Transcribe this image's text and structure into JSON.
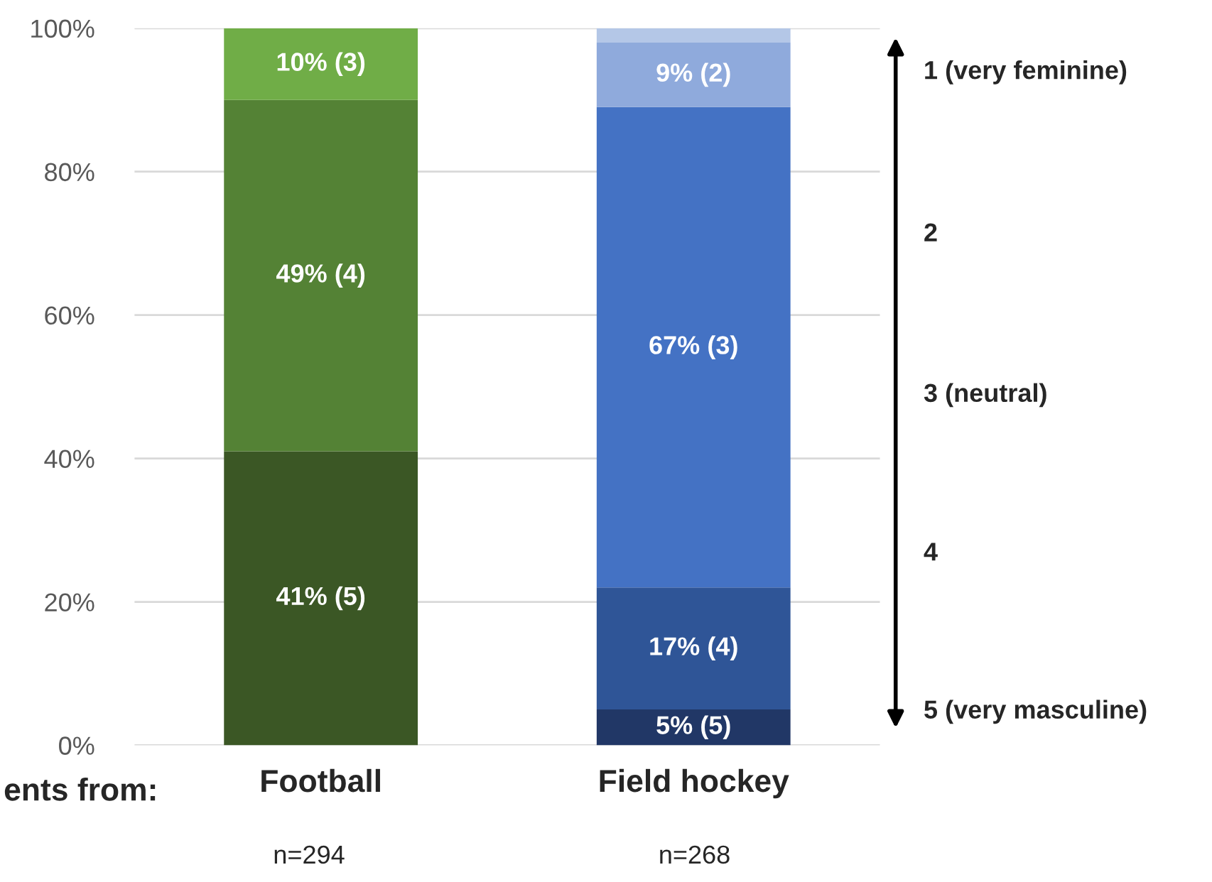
{
  "chart_data": {
    "type": "bar",
    "stacked": true,
    "categories": [
      "Football",
      "Field hockey"
    ],
    "series": [
      {
        "colors": [
          "#3b5725",
          "#213766"
        ],
        "values": [
          41,
          5
        ],
        "value_labels": [
          "41% (5)",
          "5% (5)"
        ]
      },
      {
        "colors": [
          "#548235",
          "#2f5597"
        ],
        "values": [
          49,
          17
        ],
        "value_labels": [
          "49% (4)",
          "17% (4)"
        ]
      },
      {
        "colors": [
          "#70ad47",
          "#4472c4"
        ],
        "values": [
          10,
          67
        ],
        "value_labels": [
          "10% (3)",
          "67% (3)"
        ]
      },
      {
        "colors": [
          "#a9d18e",
          "#8faadc"
        ],
        "values": [
          null,
          9
        ],
        "value_labels": [
          null,
          "9% (2)"
        ]
      },
      {
        "colors": [
          "#c5e0b4",
          "#b4c7e7"
        ],
        "values": [
          null,
          2
        ],
        "value_labels": [
          null,
          null
        ]
      }
    ],
    "ylim": [
      0,
      100
    ],
    "yticks": [
      {
        "value": 0,
        "label": "0%"
      },
      {
        "value": 20,
        "label": "20%"
      },
      {
        "value": 40,
        "label": "40%"
      },
      {
        "value": 60,
        "label": "60%"
      },
      {
        "value": 80,
        "label": "80%"
      },
      {
        "value": 100,
        "label": "100%"
      }
    ],
    "grid": "y",
    "annotations": [
      "ents from:",
      "n=294",
      "n=268",
      "1 (very feminine)",
      "2",
      "3 (neutral)",
      "4",
      "5 (very masculine)"
    ]
  }
}
